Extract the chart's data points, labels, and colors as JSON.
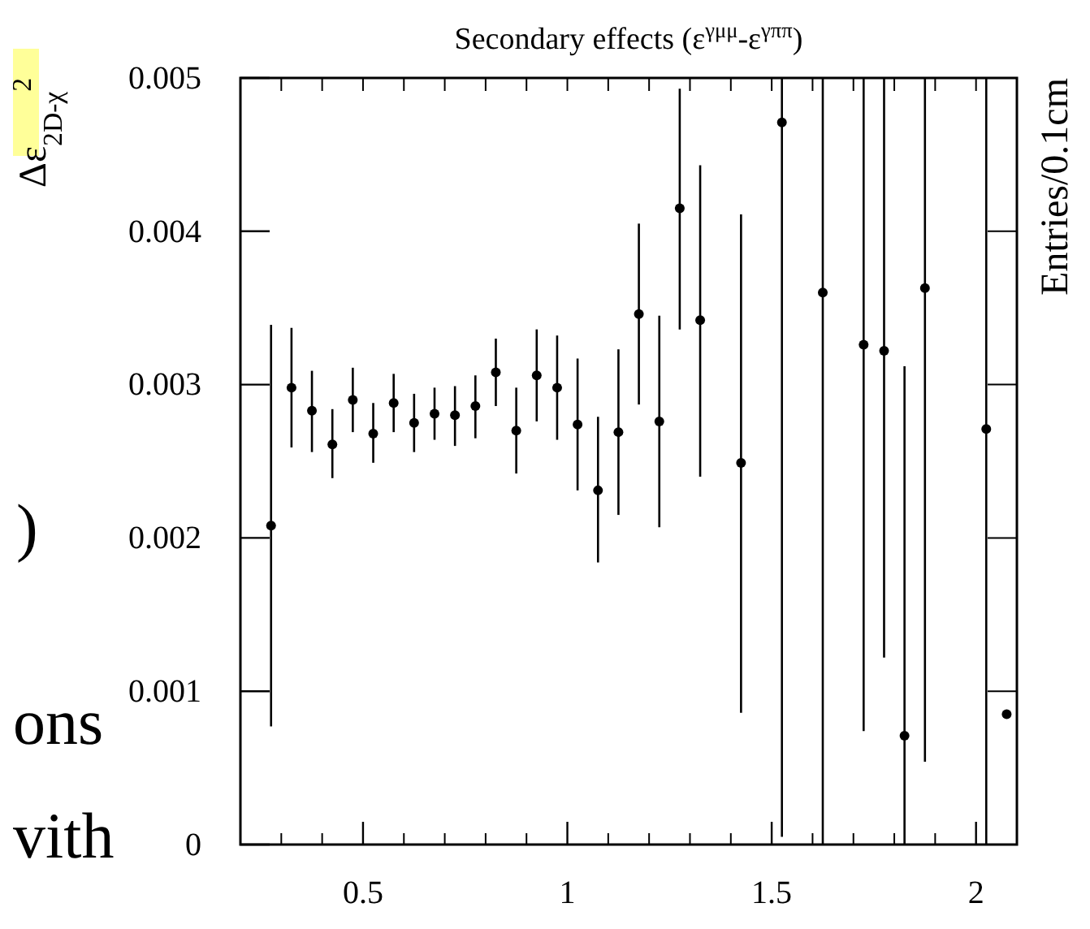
{
  "chart_data": {
    "type": "scatter",
    "title": "Secondary effects (ε$^{γμμ}$-ε$^{γππ}$)",
    "ylabel": "Δε$_{2D-χ}$$^{2}$",
    "y2label": "Entries/0.1cm",
    "annotations": [
      ")",
      "ons",
      "vith"
    ],
    "x": [
      0.275,
      0.325,
      0.375,
      0.425,
      0.475,
      0.525,
      0.575,
      0.625,
      0.675,
      0.725,
      0.775,
      0.825,
      0.875,
      0.925,
      0.975,
      1.025,
      1.075,
      1.125,
      1.175,
      1.225,
      1.275,
      1.325,
      1.425,
      1.525,
      1.625,
      1.725,
      1.775,
      1.825,
      1.875,
      2.025,
      2.075
    ],
    "series": [
      {
        "color": "#000000",
        "values": [
          0.00208,
          0.00298,
          0.00283,
          0.00261,
          0.0029,
          0.00268,
          0.00288,
          0.00275,
          0.00281,
          0.0028,
          0.00286,
          0.00308,
          0.0027,
          0.00306,
          0.00298,
          0.00274,
          0.00231,
          0.00269,
          0.00346,
          0.00276,
          0.00415,
          0.00342,
          0.00249,
          0.00471,
          0.0036,
          0.00326,
          0.00322,
          0.00071,
          0.00363,
          0.00271,
          0.00085
        ],
        "errors": [
          [
            0.00077,
            0.00339
          ],
          [
            0.00259,
            0.00337
          ],
          [
            0.00256,
            0.00309
          ],
          [
            0.00239,
            0.00284
          ],
          [
            0.00269,
            0.00311
          ],
          [
            0.00249,
            0.00288
          ],
          [
            0.00269,
            0.00307
          ],
          [
            0.00256,
            0.00294
          ],
          [
            0.00264,
            0.00298
          ],
          [
            0.0026,
            0.00299
          ],
          [
            0.00265,
            0.00306
          ],
          [
            0.00286,
            0.0033
          ],
          [
            0.00242,
            0.00298
          ],
          [
            0.00276,
            0.00336
          ],
          [
            0.00264,
            0.00332
          ],
          [
            0.00231,
            0.00317
          ],
          [
            0.00184,
            0.00279
          ],
          [
            0.00215,
            0.00323
          ],
          [
            0.00287,
            0.00405
          ],
          [
            0.00207,
            0.00345
          ],
          [
            0.00336,
            0.00493
          ],
          [
            0.0024,
            0.00443
          ],
          [
            0.00086,
            0.00411
          ],
          [
            5e-05,
            0.005
          ],
          [
            0,
            0.005
          ],
          [
            0.00074,
            0.005
          ],
          [
            0.00122,
            0.005
          ],
          [
            0,
            0.00312
          ],
          [
            0.00054,
            0.005
          ],
          [
            0,
            0.005
          ],
          null
        ]
      }
    ],
    "marker": "circle",
    "xlim": [
      0.2,
      2.1
    ],
    "xticks": [
      {
        "value": 0.3,
        "label": null
      },
      {
        "value": 0.4,
        "label": null
      },
      0.5,
      {
        "value": 0.6,
        "label": null
      },
      {
        "value": 0.7,
        "label": null
      },
      {
        "value": 0.8,
        "label": null
      },
      {
        "value": 0.9,
        "label": null
      },
      1,
      {
        "value": 1.1,
        "label": null
      },
      {
        "value": 1.2,
        "label": null
      },
      {
        "value": 1.3,
        "label": null
      },
      {
        "value": 1.4,
        "label": null
      },
      1.5,
      {
        "value": 1.6,
        "label": null
      },
      {
        "value": 1.7,
        "label": null
      },
      {
        "value": 1.8,
        "label": null
      },
      {
        "value": 1.9,
        "label": null
      },
      2
    ],
    "ylim": [
      0,
      0.005
    ],
    "yticks": [
      0,
      0.001,
      0.002,
      0.003,
      0.004,
      0.005
    ],
    "grid": false
  }
}
